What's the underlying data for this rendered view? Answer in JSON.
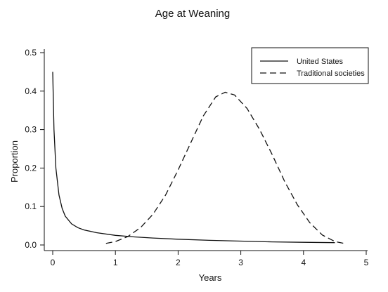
{
  "chart_data": {
    "type": "line",
    "title": "Age at Weaning",
    "xlabel": "Years",
    "ylabel": "Proportion",
    "xlim": [
      0,
      5
    ],
    "ylim": [
      -0.01,
      0.5
    ],
    "x_ticks": [
      "0",
      "1",
      "2",
      "3",
      "4",
      "5"
    ],
    "y_ticks": [
      "0.0",
      "0.1",
      "0.2",
      "0.3",
      "0.4",
      "0.5"
    ],
    "grid": false,
    "legend_position": "top-right",
    "series": [
      {
        "name": "United States",
        "style": "solid",
        "x": [
          0.0,
          0.02,
          0.05,
          0.1,
          0.15,
          0.2,
          0.3,
          0.4,
          0.5,
          0.7,
          1.0,
          1.3,
          1.6,
          2.0,
          2.5,
          3.0,
          3.5,
          4.0,
          4.5
        ],
        "y": [
          0.45,
          0.3,
          0.2,
          0.13,
          0.095,
          0.075,
          0.055,
          0.045,
          0.039,
          0.032,
          0.025,
          0.021,
          0.018,
          0.015,
          0.012,
          0.01,
          0.008,
          0.007,
          0.006
        ]
      },
      {
        "name": "Traditional societies",
        "style": "dashed",
        "x": [
          0.85,
          1.0,
          1.2,
          1.4,
          1.6,
          1.8,
          2.0,
          2.2,
          2.4,
          2.6,
          2.75,
          2.9,
          3.1,
          3.3,
          3.5,
          3.7,
          3.9,
          4.1,
          4.3,
          4.5,
          4.65
        ],
        "y": [
          0.004,
          0.009,
          0.022,
          0.045,
          0.08,
          0.13,
          0.195,
          0.265,
          0.335,
          0.385,
          0.397,
          0.39,
          0.355,
          0.3,
          0.235,
          0.165,
          0.105,
          0.058,
          0.026,
          0.009,
          0.004
        ]
      }
    ]
  }
}
